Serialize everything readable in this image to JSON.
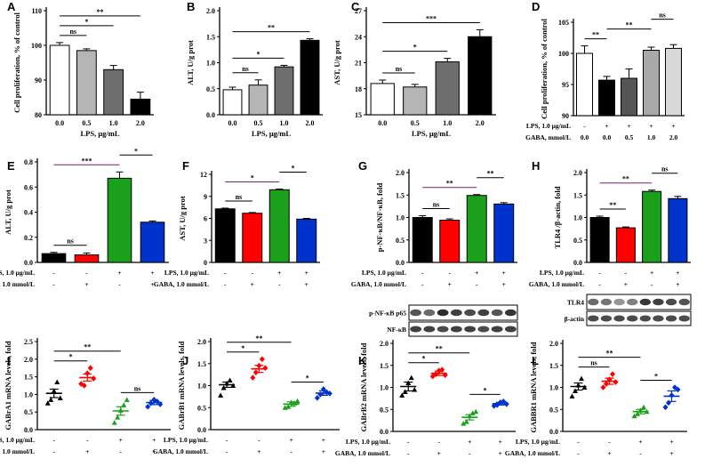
{
  "figure": {
    "text_labels": {
      "lps": "LPS, 1.0 μg/mL",
      "gaba": "GABA, 1.0 mmol/L",
      "gaba_d": "GABA, mmol/L",
      "plus": "+",
      "minus": "-",
      "blot_p65": "p-NF-κB p65",
      "blot_nfkb": "NF-κB",
      "blot_tlr4": "TLR4",
      "blot_actin": "β-actin"
    }
  },
  "chart_data": [
    {
      "id": "A",
      "type": "bar",
      "ylabel": "Cell proliferation, % of control",
      "xlabel": "LPS, μg/mL",
      "categories": [
        "0.0",
        "0.5",
        "1.0",
        "2.0"
      ],
      "values": [
        100,
        98.5,
        93,
        84.5
      ],
      "errors": [
        0.8,
        0.5,
        1.2,
        2
      ],
      "colors": [
        "#ffffff",
        "#b5b5b5",
        "#6e6e6e",
        "#000000"
      ],
      "ylim": [
        80,
        110
      ],
      "yticks": [
        "80",
        "90",
        "100",
        "110"
      ],
      "significance": [
        {
          "from": 0,
          "to": 1,
          "label": "ns"
        },
        {
          "from": 0,
          "to": 2,
          "label": "*"
        },
        {
          "from": 0,
          "to": 3,
          "label": "**"
        }
      ]
    },
    {
      "id": "B",
      "type": "bar",
      "ylabel": "ALT, U/g prot",
      "xlabel": "LPS, μg/mL",
      "categories": [
        "0.0",
        "0.5",
        "1.0",
        "2.0"
      ],
      "values": [
        0.48,
        0.57,
        0.92,
        1.43
      ],
      "errors": [
        0.05,
        0.1,
        0.03,
        0.03
      ],
      "colors": [
        "#ffffff",
        "#b5b5b5",
        "#6e6e6e",
        "#000000"
      ],
      "ylim": [
        0,
        2
      ],
      "yticks": [
        "0.0",
        "0.5",
        "1.0",
        "1.5",
        "2.0"
      ],
      "significance": [
        {
          "from": 0,
          "to": 1,
          "label": "ns"
        },
        {
          "from": 0,
          "to": 2,
          "label": "*"
        },
        {
          "from": 0,
          "to": 3,
          "label": "**"
        }
      ]
    },
    {
      "id": "C",
      "type": "bar",
      "ylabel": "AST, U/g prot",
      "xlabel": "LPS, μg/mL",
      "categories": [
        "0.0",
        "0.5",
        "1.0",
        "2.0"
      ],
      "values": [
        18.6,
        18.2,
        21.1,
        24
      ],
      "errors": [
        0.4,
        0.3,
        0.4,
        0.8
      ],
      "colors": [
        "#ffffff",
        "#b5b5b5",
        "#6e6e6e",
        "#000000"
      ],
      "ylim": [
        15,
        27
      ],
      "yticks": [
        "15",
        "18",
        "21",
        "24",
        "27"
      ],
      "significance": [
        {
          "from": 0,
          "to": 1,
          "label": "ns"
        },
        {
          "from": 0,
          "to": 2,
          "label": "*"
        },
        {
          "from": 0,
          "to": 3,
          "label": "***"
        }
      ]
    },
    {
      "id": "D",
      "type": "bar",
      "ylabel": "Cell proliferation, % of control",
      "categories": [
        "0.0",
        "0.0",
        "0.5",
        "1.0",
        "2.0"
      ],
      "rows": [
        {
          "label": "LPS, 1.0 μg/mL",
          "values": [
            "-",
            "+",
            "+",
            "+",
            "+"
          ]
        }
      ],
      "values": [
        100,
        95.7,
        96,
        100.5,
        100.8
      ],
      "errors": [
        1.2,
        0.6,
        1.5,
        0.5,
        0.6
      ],
      "colors": [
        "#ffffff",
        "#000000",
        "#555555",
        "#a8a8a8",
        "#d8d8d8"
      ],
      "ylim": [
        90,
        105
      ],
      "yticks": [
        "90",
        "95",
        "100",
        "105"
      ],
      "significance": [
        {
          "from": 0,
          "to": 1,
          "label": "**"
        },
        {
          "from": 1,
          "to": 3,
          "label": "**"
        },
        {
          "from": 3,
          "to": 4,
          "label": "ns"
        }
      ]
    },
    {
      "id": "E",
      "type": "bar",
      "ylabel": "ALT, U/g prot",
      "rows": [
        {
          "label": "LPS, 1.0 μg/mL",
          "values": [
            "-",
            "-",
            "+",
            "+"
          ]
        },
        {
          "label": "GABA, 1.0 mmol/L",
          "values": [
            "-",
            "+",
            "-",
            "+"
          ]
        }
      ],
      "values": [
        0.07,
        0.06,
        0.67,
        0.32
      ],
      "errors": [
        0.01,
        0.015,
        0.05,
        0.01
      ],
      "colors": [
        "#000000",
        "#ff0000",
        "#1aa01a",
        "#0033cc"
      ],
      "ylim": [
        0,
        0.8
      ],
      "yticks": [
        "0.0",
        "0.2",
        "0.4",
        "0.6",
        "0.8"
      ],
      "significance": [
        {
          "from": 0,
          "to": 1,
          "label": "ns"
        },
        {
          "from": 0,
          "to": 2,
          "label": "***"
        },
        {
          "from": 2,
          "to": 3,
          "label": "*"
        }
      ]
    },
    {
      "id": "F",
      "type": "bar",
      "ylabel": "AST, U/g prot",
      "rows": [
        {
          "label": "LPS, 1.0 μg/mL",
          "values": [
            "-",
            "-",
            "+",
            "+"
          ]
        },
        {
          "label": "GABA, 1.0 mmol/L",
          "values": [
            "-",
            "+",
            "-",
            "+"
          ]
        }
      ],
      "values": [
        7.3,
        6.7,
        9.9,
        5.9
      ],
      "errors": [
        0.1,
        0.1,
        0.1,
        0.1
      ],
      "colors": [
        "#000000",
        "#ff0000",
        "#1aa01a",
        "#0033cc"
      ],
      "ylim": [
        0,
        12
      ],
      "yticks": [
        "0",
        "3",
        "6",
        "9",
        "12"
      ],
      "significance": [
        {
          "from": 0,
          "to": 1,
          "label": "ns"
        },
        {
          "from": 0,
          "to": 2,
          "label": "*"
        },
        {
          "from": 2,
          "to": 3,
          "label": "*"
        }
      ]
    },
    {
      "id": "G",
      "type": "bar",
      "ylabel": "p-NF-κB/NF-κB, fold",
      "rows": [
        {
          "label": "LPS, 1.0 μg/mL",
          "values": [
            "-",
            "-",
            "+",
            "+"
          ]
        },
        {
          "label": "GABA, 1.0 mmol/L",
          "values": [
            "-",
            "+",
            "-",
            "+"
          ]
        }
      ],
      "values": [
        1.0,
        0.94,
        1.49,
        1.3
      ],
      "errors": [
        0.04,
        0.03,
        0.02,
        0.03
      ],
      "colors": [
        "#000000",
        "#ff0000",
        "#1aa01a",
        "#0033cc"
      ],
      "ylim": [
        0,
        2
      ],
      "yticks": [
        "0.0",
        "0.5",
        "1.0",
        "1.5",
        "2.0"
      ],
      "significance": [
        {
          "from": 0,
          "to": 1,
          "label": "ns"
        },
        {
          "from": 0,
          "to": 2,
          "label": "**"
        },
        {
          "from": 2,
          "to": 3,
          "label": "**"
        }
      ]
    },
    {
      "id": "H",
      "type": "bar",
      "ylabel": "TLR4 /β-actin, fold",
      "rows": [
        {
          "label": "LPS, 1.0 μg/mL",
          "values": [
            "-",
            "-",
            "+",
            "+"
          ]
        },
        {
          "label": "GABA, 1.0 mmol/L",
          "values": [
            "-",
            "+",
            "-",
            "+"
          ]
        }
      ],
      "values": [
        1.0,
        0.77,
        1.58,
        1.42
      ],
      "errors": [
        0.03,
        0.02,
        0.03,
        0.05
      ],
      "colors": [
        "#000000",
        "#ff0000",
        "#1aa01a",
        "#0033cc"
      ],
      "ylim": [
        0,
        2
      ],
      "yticks": [
        "0.0",
        "0.5",
        "1.0",
        "1.5",
        "2.0"
      ],
      "significance": [
        {
          "from": 0,
          "to": 1,
          "label": "**"
        },
        {
          "from": 0,
          "to": 2,
          "label": "**"
        },
        {
          "from": 2,
          "to": 3,
          "label": "ns"
        }
      ]
    },
    {
      "id": "I",
      "type": "scatter",
      "ylabel": "GABrA1 mRNA levels, fold",
      "rows": [
        {
          "label": "LPS, 1.0 μg/mL",
          "values": [
            "-",
            "-",
            "+",
            "+"
          ]
        },
        {
          "label": "GABA, 1.0 mmol/L",
          "values": [
            "-",
            "+",
            "-",
            "+"
          ]
        }
      ],
      "means": [
        1.03,
        1.48,
        0.53,
        0.77
      ],
      "errors": [
        0.12,
        0.1,
        0.12,
        0.06
      ],
      "points": [
        [
          0.75,
          0.85,
          1.1,
          1.35,
          0.9
        ],
        [
          1.3,
          1.25,
          1.6,
          1.75,
          1.45
        ],
        [
          0.2,
          0.35,
          0.55,
          0.7,
          0.85
        ],
        [
          0.65,
          0.75,
          0.85,
          0.8,
          0.72
        ]
      ],
      "markers": [
        "triangle",
        "diamond",
        "triangle",
        "diamond"
      ],
      "colors": [
        "#000000",
        "#ff0000",
        "#1aa01a",
        "#0033cc"
      ],
      "ylim": [
        0,
        2.5
      ],
      "yticks": [
        "0.0",
        "0.5",
        "1.0",
        "1.5",
        "2.0",
        "2.5"
      ],
      "significance": [
        {
          "from": 0,
          "to": 1,
          "label": "*"
        },
        {
          "from": 0,
          "to": 2,
          "label": "**"
        },
        {
          "from": 2,
          "to": 3,
          "label": "ns"
        }
      ]
    },
    {
      "id": "J",
      "type": "scatter",
      "ylabel": "GABrB1 mRNA levels, fold",
      "rows": [
        {
          "label": "LPS, 1.0 μg/mL",
          "values": [
            "-",
            "-",
            "+",
            "+"
          ]
        },
        {
          "label": "GABA, 1.0 mmol/L",
          "values": [
            "-",
            "+",
            "-",
            "+"
          ]
        }
      ],
      "means": [
        1.02,
        1.38,
        0.58,
        0.83
      ],
      "errors": [
        0.06,
        0.08,
        0.05,
        0.05
      ],
      "points": [
        [
          0.78,
          0.95,
          1.05,
          1.12,
          1.0
        ],
        [
          1.18,
          1.3,
          1.45,
          1.6,
          1.4
        ],
        [
          0.5,
          0.52,
          0.62,
          0.6,
          0.65
        ],
        [
          0.72,
          0.8,
          0.92,
          0.85,
          0.82
        ]
      ],
      "markers": [
        "triangle",
        "diamond",
        "triangle",
        "diamond"
      ],
      "colors": [
        "#000000",
        "#ff0000",
        "#1aa01a",
        "#0033cc"
      ],
      "ylim": [
        0,
        2.0
      ],
      "yticks": [
        "0.0",
        "0.5",
        "1.0",
        "1.5",
        "2.0"
      ],
      "significance": [
        {
          "from": 0,
          "to": 1,
          "label": "*"
        },
        {
          "from": 0,
          "to": 2,
          "label": "**"
        },
        {
          "from": 2,
          "to": 3,
          "label": "*"
        }
      ]
    },
    {
      "id": "K",
      "type": "scatter",
      "ylabel": "GABrB2 mRNA levels, fold",
      "rows": [
        {
          "label": "LPS, 1.0 μg/mL",
          "values": [
            "-",
            "-",
            "+",
            "+"
          ]
        },
        {
          "label": "GABA, 1.0 mmol/L",
          "values": [
            "-",
            "+",
            "-",
            "+"
          ]
        }
      ],
      "means": [
        1.02,
        1.32,
        0.32,
        0.63
      ],
      "errors": [
        0.1,
        0.05,
        0.06,
        0.03
      ],
      "points": [
        [
          0.82,
          0.9,
          1.1,
          1.22,
          0.95
        ],
        [
          1.25,
          1.3,
          1.38,
          1.4,
          1.28
        ],
        [
          0.18,
          0.22,
          0.35,
          0.42,
          0.45
        ],
        [
          0.58,
          0.6,
          0.66,
          0.68,
          0.62
        ]
      ],
      "markers": [
        "triangle",
        "diamond",
        "triangle",
        "diamond"
      ],
      "colors": [
        "#000000",
        "#ff0000",
        "#1aa01a",
        "#0033cc"
      ],
      "ylim": [
        0,
        2.0
      ],
      "yticks": [
        "0.0",
        "0.5",
        "1.0",
        "1.5",
        "2.0"
      ],
      "significance": [
        {
          "from": 0,
          "to": 1,
          "label": "*"
        },
        {
          "from": 0,
          "to": 2,
          "label": "**"
        },
        {
          "from": 2,
          "to": 3,
          "label": "*"
        }
      ]
    },
    {
      "id": "L",
      "type": "scatter",
      "ylabel": "GABBR1 mRNA levels, fold",
      "rows": [
        {
          "label": "LPS, 1.0 μg/mL",
          "values": [
            "-",
            "-",
            "+",
            "+"
          ]
        },
        {
          "label": "GABA, 1.0 mmol/L",
          "values": [
            "-",
            "+",
            "-",
            "+"
          ]
        }
      ],
      "means": [
        1.02,
        1.14,
        0.45,
        0.8
      ],
      "errors": [
        0.08,
        0.07,
        0.05,
        0.12
      ],
      "points": [
        [
          0.8,
          0.92,
          1.05,
          1.2,
          1.0
        ],
        [
          1.0,
          1.08,
          1.18,
          1.3,
          1.12
        ],
        [
          0.35,
          0.4,
          0.48,
          0.55,
          0.45
        ],
        [
          0.55,
          0.65,
          0.82,
          1.0,
          0.95
        ]
      ],
      "markers": [
        "triangle",
        "diamond",
        "triangle",
        "diamond"
      ],
      "colors": [
        "#000000",
        "#ff0000",
        "#1aa01a",
        "#0033cc"
      ],
      "ylim": [
        0,
        2.0
      ],
      "yticks": [
        "0.0",
        "0.5",
        "1.0",
        "1.5",
        "2.0"
      ],
      "significance": [
        {
          "from": 0,
          "to": 1,
          "label": "ns"
        },
        {
          "from": 0,
          "to": 2,
          "label": "**"
        },
        {
          "from": 2,
          "to": 3,
          "label": "*"
        }
      ]
    }
  ]
}
